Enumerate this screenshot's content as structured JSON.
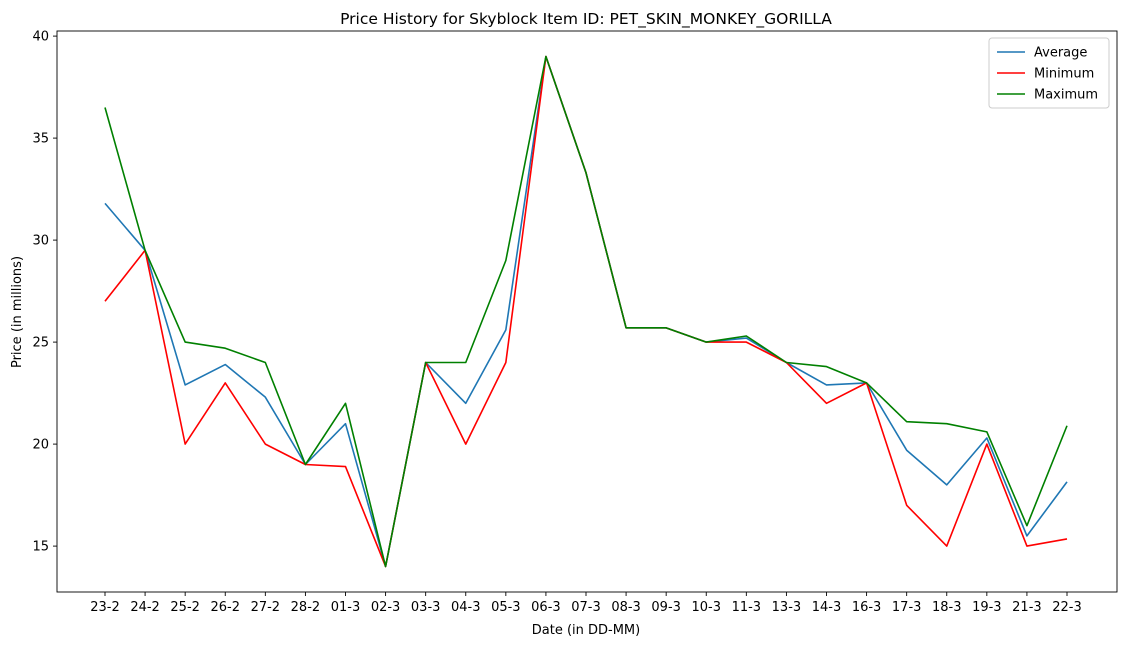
{
  "chart_data": {
    "type": "line",
    "title": "Price History for Skyblock Item ID: PET_SKIN_MONKEY_GORILLA",
    "xlabel": "Date (in DD-MM)",
    "ylabel": "Price (in millions)",
    "ylim": [
      12.75,
      40.25
    ],
    "yticks": [
      15,
      20,
      25,
      30,
      35,
      40
    ],
    "legend_position": "top-right",
    "grid": false,
    "categories": [
      "23-2",
      "24-2",
      "25-2",
      "26-2",
      "27-2",
      "28-2",
      "01-3",
      "02-3",
      "03-3",
      "04-3",
      "05-3",
      "06-3",
      "07-3",
      "08-3",
      "09-3",
      "10-3",
      "11-3",
      "13-3",
      "14-3",
      "16-3",
      "17-3",
      "18-3",
      "19-3",
      "21-3",
      "22-3"
    ],
    "series": [
      {
        "name": "Average",
        "color": "#1f77b4",
        "values": [
          31.8,
          29.5,
          22.9,
          23.9,
          22.3,
          19.0,
          21.0,
          14.0,
          24.0,
          22.0,
          25.6,
          39.0,
          33.3,
          25.7,
          25.7,
          25.0,
          25.2,
          24.0,
          22.9,
          23.0,
          19.7,
          18.0,
          20.3,
          15.5,
          18.15
        ]
      },
      {
        "name": "Minimum",
        "color": "#ff0000",
        "values": [
          27.0,
          29.5,
          20.0,
          23.0,
          20.0,
          19.0,
          18.9,
          14.0,
          24.0,
          20.0,
          24.0,
          39.0,
          33.3,
          25.7,
          25.7,
          25.0,
          25.0,
          24.0,
          22.0,
          23.0,
          17.0,
          15.0,
          20.0,
          15.0,
          15.35
        ]
      },
      {
        "name": "Maximum",
        "color": "#008000",
        "values": [
          36.5,
          29.5,
          25.0,
          24.7,
          24.0,
          19.0,
          22.0,
          14.0,
          24.0,
          24.0,
          29.0,
          39.0,
          33.3,
          25.7,
          25.7,
          25.0,
          25.3,
          24.0,
          23.8,
          23.0,
          21.1,
          21.0,
          20.6,
          16.0,
          20.9
        ]
      }
    ]
  }
}
